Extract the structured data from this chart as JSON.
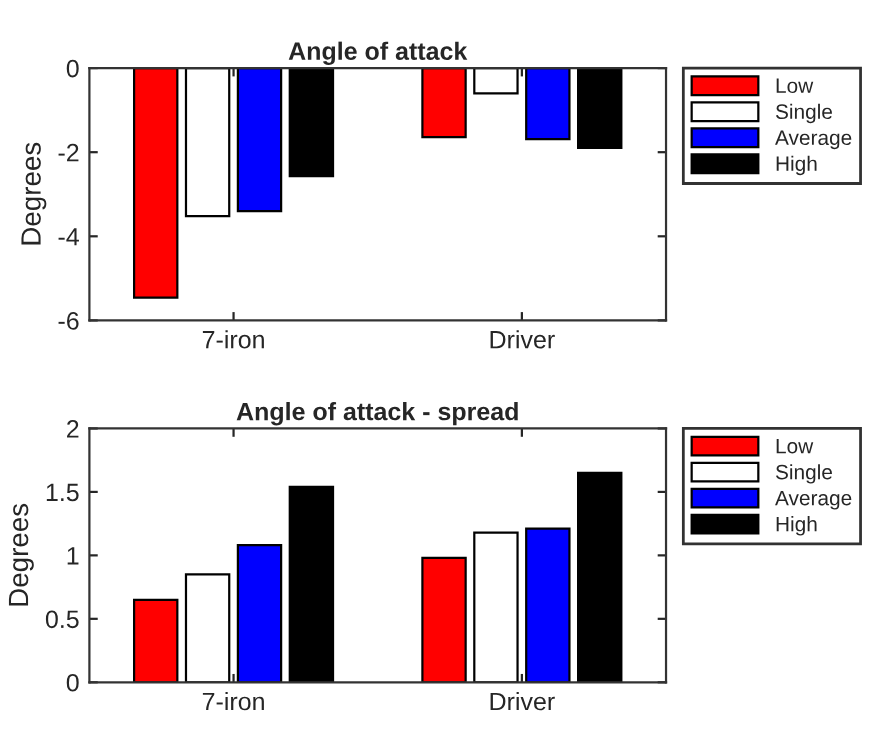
{
  "chart_data": [
    {
      "type": "bar",
      "title": "Angle of attack",
      "ylabel": "Degrees",
      "categories": [
        "7-iron",
        "Driver"
      ],
      "series": [
        {
          "name": "Low",
          "color": "#ff0000",
          "values": [
            -5.46,
            -1.64
          ]
        },
        {
          "name": "Single",
          "color": "#ffffff",
          "values": [
            -3.52,
            -0.6
          ]
        },
        {
          "name": "Average",
          "color": "#0000ff",
          "values": [
            -3.4,
            -1.69
          ]
        },
        {
          "name": "High",
          "color": "#000000",
          "values": [
            -2.57,
            -1.9
          ]
        }
      ],
      "ylim": [
        -6,
        0
      ],
      "yticks": [
        -6,
        -4,
        -2,
        0
      ],
      "legend": "top right",
      "grid": false
    },
    {
      "type": "bar",
      "title": "Angle of attack - spread",
      "ylabel": "Degrees",
      "categories": [
        "7-iron",
        "Driver"
      ],
      "series": [
        {
          "name": "Low",
          "color": "#ff0000",
          "values": [
            0.65,
            0.98
          ]
        },
        {
          "name": "Single",
          "color": "#ffffff",
          "values": [
            0.85,
            1.18
          ]
        },
        {
          "name": "Average",
          "color": "#0000ff",
          "values": [
            1.08,
            1.21
          ]
        },
        {
          "name": "High",
          "color": "#000000",
          "values": [
            1.54,
            1.65
          ]
        }
      ],
      "ylim": [
        0,
        2
      ],
      "yticks": [
        0,
        0.5,
        1,
        1.5,
        2
      ],
      "legend": "top right",
      "grid": false
    }
  ]
}
